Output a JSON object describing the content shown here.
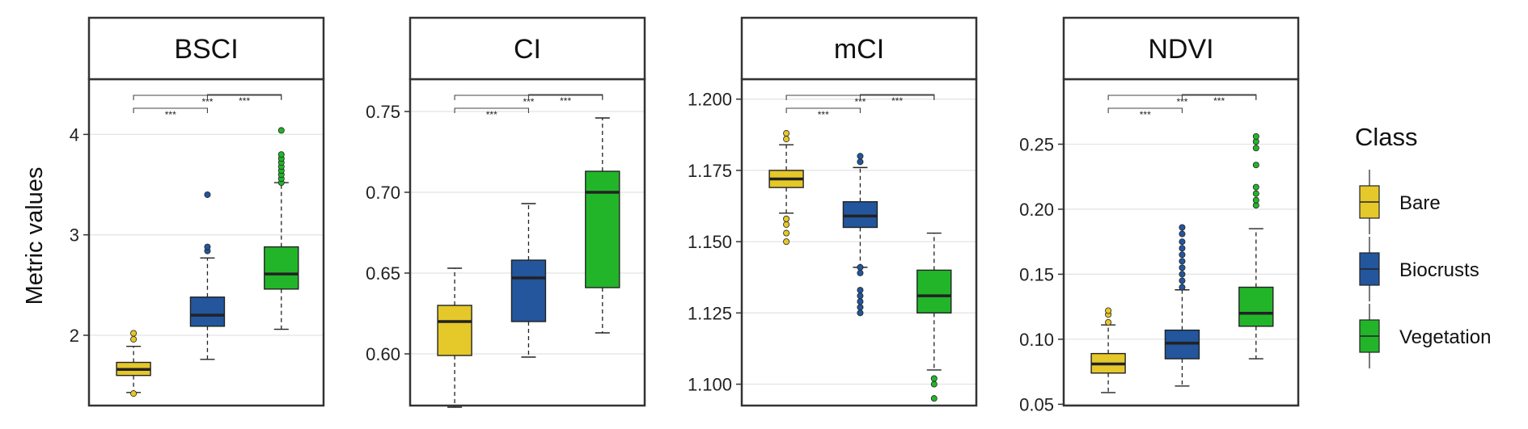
{
  "chart_data": {
    "type": "box",
    "ylabel": "Metric values",
    "legend": {
      "title": "Class",
      "position": "right",
      "entries": [
        {
          "label": "Bare",
          "color": "#E5C82A"
        },
        {
          "label": "Biocrusts",
          "color": "#23569C"
        },
        {
          "label": "Vegetation",
          "color": "#22B52A"
        }
      ]
    },
    "categories": [
      "Bare",
      "Biocrusts",
      "Vegetation"
    ],
    "significance_label": "***",
    "facets": [
      {
        "title": "BSCI",
        "ylim": [
          1.3,
          4.55
        ],
        "yticks": [
          2,
          3,
          4
        ],
        "ytick_labels": [
          "2",
          "3",
          "4"
        ],
        "grid": true,
        "boxes": [
          {
            "class": "Bare",
            "min": 1.43,
            "q1": 1.6,
            "median": 1.66,
            "q3": 1.73,
            "max": 1.89,
            "outliers": [
              1.42,
              1.96,
              2.02
            ]
          },
          {
            "class": "Biocrusts",
            "min": 1.76,
            "q1": 2.09,
            "median": 2.2,
            "q3": 2.38,
            "max": 2.77,
            "outliers": [
              2.84,
              2.88,
              3.4
            ]
          },
          {
            "class": "Vegetation",
            "min": 2.06,
            "q1": 2.46,
            "median": 2.61,
            "q3": 2.88,
            "max": 3.52,
            "outliers": [
              3.52,
              3.56,
              3.6,
              3.64,
              3.68,
              3.72,
              3.76,
              3.8,
              4.04
            ]
          }
        ],
        "brackets": [
          {
            "from": "Bare",
            "to": "Vegetation",
            "label": "***"
          },
          {
            "from": "Bare",
            "to": "Biocrusts",
            "label": "***"
          },
          {
            "from": "Biocrusts",
            "to": "Vegetation",
            "label": "***"
          }
        ]
      },
      {
        "title": "CI",
        "ylim": [
          0.568,
          0.77
        ],
        "yticks": [
          0.6,
          0.65,
          0.7,
          0.75
        ],
        "ytick_labels": [
          "0.60",
          "0.65",
          "0.70",
          "0.75"
        ],
        "grid": true,
        "boxes": [
          {
            "class": "Bare",
            "min": 0.567,
            "q1": 0.599,
            "median": 0.62,
            "q3": 0.63,
            "max": 0.653,
            "outliers": []
          },
          {
            "class": "Biocrusts",
            "min": 0.598,
            "q1": 0.62,
            "median": 0.647,
            "q3": 0.658,
            "max": 0.693,
            "outliers": []
          },
          {
            "class": "Vegetation",
            "min": 0.613,
            "q1": 0.641,
            "median": 0.7,
            "q3": 0.713,
            "max": 0.746,
            "outliers": []
          }
        ],
        "brackets": [
          {
            "from": "Bare",
            "to": "Vegetation",
            "label": "***"
          },
          {
            "from": "Bare",
            "to": "Biocrusts",
            "label": "***"
          },
          {
            "from": "Biocrusts",
            "to": "Vegetation",
            "label": "***"
          }
        ]
      },
      {
        "title": "mCI",
        "ylim": [
          1.0925,
          1.207
        ],
        "yticks": [
          1.1,
          1.125,
          1.15,
          1.175,
          1.2
        ],
        "ytick_labels": [
          "1.100",
          "1.125",
          "1.150",
          "1.175",
          "1.200"
        ],
        "grid": true,
        "boxes": [
          {
            "class": "Bare",
            "min": 1.16,
            "q1": 1.169,
            "median": 1.172,
            "q3": 1.175,
            "max": 1.184,
            "outliers": [
              1.15,
              1.153,
              1.156,
              1.158,
              1.186,
              1.188
            ]
          },
          {
            "class": "Biocrusts",
            "min": 1.141,
            "q1": 1.155,
            "median": 1.159,
            "q3": 1.164,
            "max": 1.176,
            "outliers": [
              1.125,
              1.127,
              1.129,
              1.131,
              1.133,
              1.139,
              1.141,
              1.178,
              1.18
            ]
          },
          {
            "class": "Vegetation",
            "min": 1.105,
            "q1": 1.125,
            "median": 1.131,
            "q3": 1.14,
            "max": 1.153,
            "outliers": [
              1.095,
              1.1,
              1.102
            ]
          }
        ],
        "brackets": [
          {
            "from": "Bare",
            "to": "Vegetation",
            "label": "***"
          },
          {
            "from": "Bare",
            "to": "Biocrusts",
            "label": "***"
          },
          {
            "from": "Biocrusts",
            "to": "Vegetation",
            "label": "***"
          }
        ]
      },
      {
        "title": "NDVI",
        "ylim": [
          0.049,
          0.3
        ],
        "yticks": [
          0.05,
          0.1,
          0.15,
          0.2,
          0.25
        ],
        "ytick_labels": [
          "0.05",
          "0.10",
          "0.15",
          "0.20",
          "0.25"
        ],
        "grid": true,
        "boxes": [
          {
            "class": "Bare",
            "min": 0.059,
            "q1": 0.074,
            "median": 0.081,
            "q3": 0.089,
            "max": 0.111,
            "outliers": [
              0.113,
              0.119,
              0.122
            ]
          },
          {
            "class": "Biocrusts",
            "min": 0.064,
            "q1": 0.085,
            "median": 0.097,
            "q3": 0.107,
            "max": 0.138,
            "outliers": [
              0.14,
              0.145,
              0.15,
              0.155,
              0.16,
              0.165,
              0.17,
              0.175,
              0.181,
              0.186
            ]
          },
          {
            "class": "Vegetation",
            "min": 0.085,
            "q1": 0.11,
            "median": 0.12,
            "q3": 0.14,
            "max": 0.185,
            "outliers": [
              0.203,
              0.207,
              0.212,
              0.217,
              0.234,
              0.247,
              0.252,
              0.256
            ]
          }
        ],
        "brackets": [
          {
            "from": "Bare",
            "to": "Vegetation",
            "label": "***"
          },
          {
            "from": "Bare",
            "to": "Biocrusts",
            "label": "***"
          },
          {
            "from": "Biocrusts",
            "to": "Vegetation",
            "label": "***"
          }
        ]
      }
    ]
  }
}
